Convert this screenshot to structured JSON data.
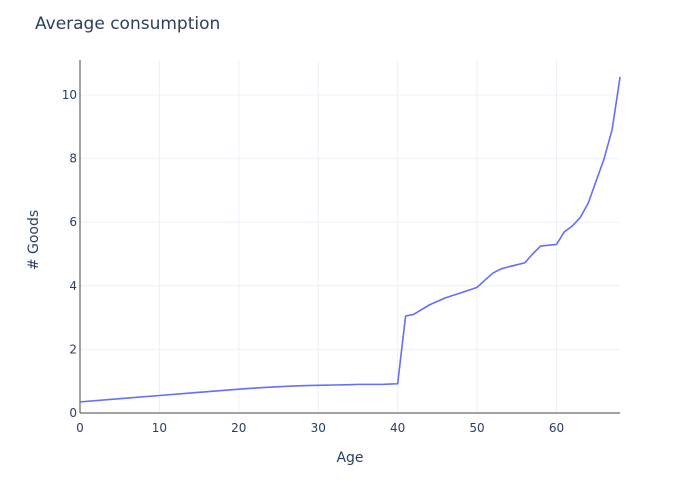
{
  "chart_data": {
    "type": "line",
    "title": "Average consumption",
    "xlabel": "Age",
    "ylabel": "# Goods",
    "xlim": [
      0,
      68
    ],
    "ylim": [
      0,
      11.1
    ],
    "x_ticks": [
      0,
      10,
      20,
      30,
      40,
      50,
      60
    ],
    "y_ticks": [
      0,
      2,
      4,
      6,
      8,
      10
    ],
    "grid": true,
    "series": [
      {
        "color": "#636efa",
        "x": [
          0,
          5,
          10,
          15,
          20,
          23,
          26,
          28,
          30,
          32,
          34,
          35,
          36,
          38,
          39,
          40,
          41,
          42,
          43,
          44,
          46,
          48,
          50,
          51,
          52,
          53,
          54,
          55,
          56,
          57,
          58,
          60,
          61,
          62,
          63,
          64,
          65,
          66,
          67,
          68
        ],
        "y": [
          0.35,
          0.45,
          0.55,
          0.65,
          0.75,
          0.8,
          0.84,
          0.86,
          0.87,
          0.88,
          0.89,
          0.9,
          0.9,
          0.9,
          0.91,
          0.92,
          3.05,
          3.1,
          3.25,
          3.4,
          3.62,
          3.78,
          3.95,
          4.18,
          4.4,
          4.53,
          4.6,
          4.66,
          4.72,
          5.0,
          5.25,
          5.3,
          5.7,
          5.88,
          6.15,
          6.6,
          7.3,
          8.0,
          8.9,
          10.55
        ]
      }
    ]
  }
}
